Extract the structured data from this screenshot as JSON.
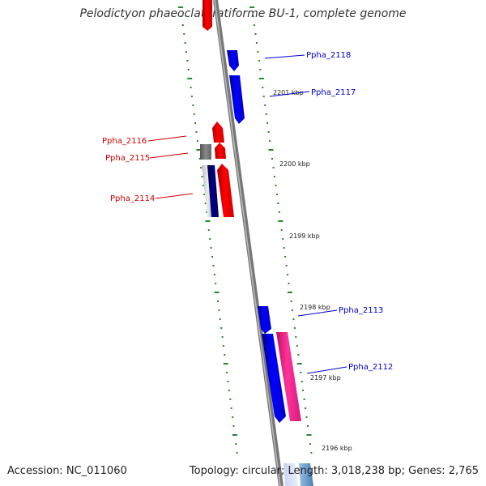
{
  "title": "Pelodictyon phaeoclathratiforme BU-1, complete genome",
  "footer": {
    "accession": "Accession: NC_011060",
    "summary": "Topology: circular; Length: 3,018,238 bp; Genes: 2,765"
  },
  "colors": {
    "forward_label": "#0000cc",
    "reverse_label": "#cc0000",
    "forward_gene": "#0000ff",
    "reverse_gene": "#ff0000",
    "rna_gene": "#ff3399",
    "pseudo_gene": "#777777",
    "navy_gene": "#000066",
    "tick": "#228b22",
    "backbone": "#888888",
    "light_blue_gene": "#6fa0d0"
  },
  "ticks": [
    {
      "label": "2201 kbp"
    },
    {
      "label": "2200 kbp"
    },
    {
      "label": "2199 kbp"
    },
    {
      "label": "2198 kbp"
    },
    {
      "label": "2197 kbp"
    },
    {
      "label": "2196 kbp"
    }
  ],
  "genes": [
    {
      "name": "Ppha_2118",
      "strand": "forward"
    },
    {
      "name": "Ppha_2117",
      "strand": "forward"
    },
    {
      "name": "Ppha_2116",
      "strand": "reverse"
    },
    {
      "name": "Ppha_2115",
      "strand": "reverse"
    },
    {
      "name": "Ppha_2114",
      "strand": "reverse"
    },
    {
      "name": "Ppha_2113",
      "strand": "forward"
    },
    {
      "name": "Ppha_2112",
      "strand": "forward"
    }
  ]
}
